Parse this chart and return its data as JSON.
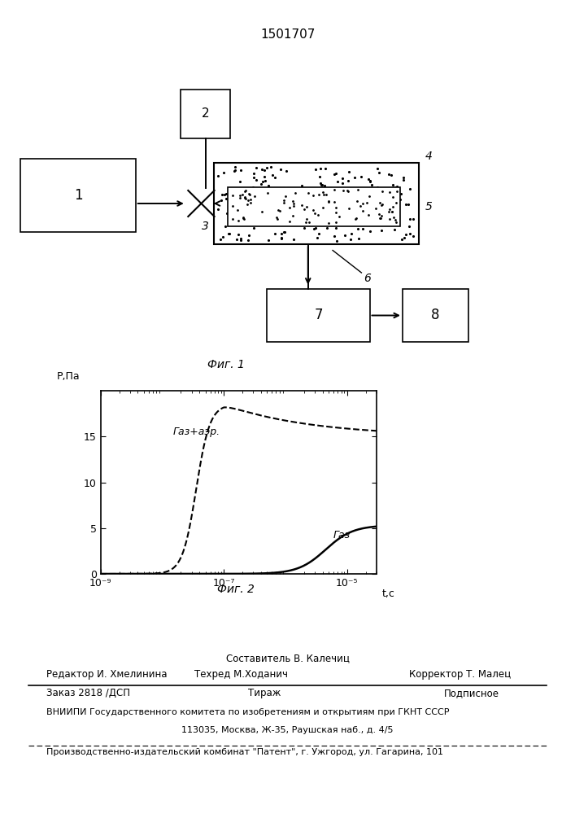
{
  "title": "1501707",
  "fig1_label": "Фиг. 1",
  "fig2_label": "Фиг. 2",
  "ylabel_top": "P,Па",
  "xlabel": "t,c",
  "yticks": [
    0,
    5,
    10,
    15
  ],
  "xtick_labels": [
    "10⁻⁹",
    "10⁻⁷",
    "10⁻⁵"
  ],
  "curve_gas_aerosol_label": "Газ+аэр.",
  "curve_gas_label": "Газ",
  "box1_label": "1",
  "box2_label": "2",
  "box3_label": "3",
  "box4_label": "4",
  "box5_label": "5",
  "box6_label": "6",
  "box7_label": "7",
  "box8_label": "8",
  "staff_line1": "Составитель В. Калечиц",
  "staff_line2_left": "Редактор И. Хмелинина",
  "staff_line2_mid": "Техред М.Ходанич",
  "staff_line2_right": "Корректор Т. Малец",
  "order_left": "Заказ 2818 /ДСП",
  "order_mid": "Тираж",
  "order_right": "Подписное",
  "vnipi_line": "ВНИИПИ Государственного комитета по изобретениям и открытиям при ГКНТ СССР",
  "vnipi_addr": "113035, Москва, Ж-35, Раушская наб., д. 4/5",
  "patent_line": "Производственно-издательский комбинат \"Патент\", г. Ужгород, ул. Гагарина, 101",
  "background": "#ffffff"
}
